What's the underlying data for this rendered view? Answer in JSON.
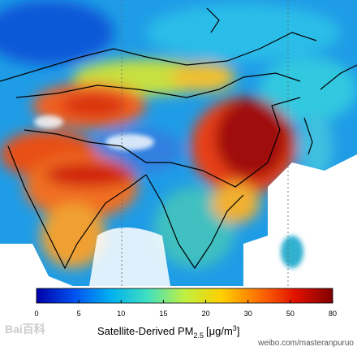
{
  "colorbar": {
    "ticks": [
      "0",
      "5",
      "10",
      "15",
      "20",
      "30",
      "50",
      "80"
    ],
    "colors": [
      "#0000a8",
      "#0050f0",
      "#00b0f0",
      "#40e0c0",
      "#c0f040",
      "#ffd000",
      "#ff7000",
      "#e01000",
      "#800000"
    ]
  },
  "label": {
    "main": "Satellite-Derived PM",
    "subscript": "2.5",
    "unit": "[μg/m",
    "superscript": "3",
    "close": "]"
  },
  "watermark": "weibo.com/masteranpuruo",
  "logo": "Bai百科"
}
